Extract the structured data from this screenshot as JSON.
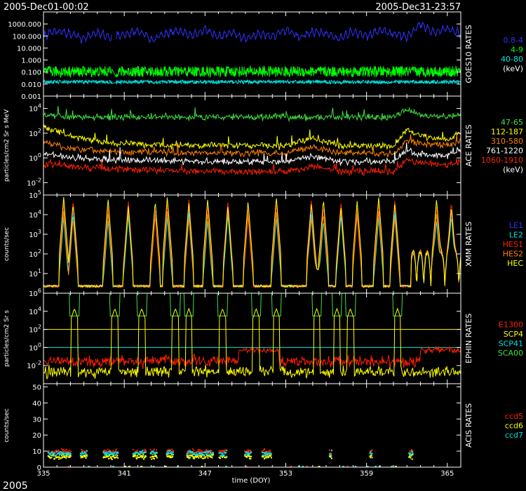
{
  "header": {
    "start_time": "2005-Dec01-00:02",
    "end_time": "2005-Dec31-23:57"
  },
  "footer": {
    "year": "2005"
  },
  "x_axis": {
    "label": "time (DOY)",
    "ticks": [
      "335",
      "341",
      "347",
      "353",
      "359",
      "365"
    ],
    "range": [
      335,
      366
    ]
  },
  "colors": {
    "blue": "#3030ff",
    "green": "#00ff00",
    "cyan": "#00e0e0",
    "yellow": "#ffff00",
    "orange": "#ff8000",
    "red": "#ff2000",
    "white": "#ffffff",
    "lightgreen": "#40e040"
  },
  "chart_data": [
    {
      "id": "goes",
      "type": "line",
      "title": "GOES10 RATES",
      "ylabel": "",
      "y_scale": "log",
      "ylim": [
        0.001,
        10000
      ],
      "y_ticks": [
        "1000.000",
        "100.000",
        "10.000",
        "1.000",
        "0.100",
        "0.010",
        "0.001"
      ],
      "legend": [
        {
          "label": "0.8-4",
          "color": "#3030ff"
        },
        {
          "label": "4-9",
          "color": "#00ff00"
        },
        {
          "label": "40-80",
          "color": "#00e0e0"
        },
        {
          "label": "(keV)",
          "color": "#ffffff"
        }
      ],
      "series": [
        {
          "name": "0.8-4",
          "color": "#3030ff",
          "x": [
            335,
            336,
            337,
            338,
            339,
            340,
            341,
            342,
            343,
            344,
            345,
            346,
            347,
            348,
            349,
            350,
            351,
            352,
            353,
            354,
            355,
            356,
            357,
            358,
            359,
            360,
            361,
            362,
            363,
            364,
            365,
            366
          ],
          "y": [
            100,
            300,
            150,
            60,
            200,
            80,
            120,
            300,
            50,
            150,
            250,
            100,
            400,
            80,
            200,
            60,
            150,
            100,
            300,
            80,
            200,
            150,
            60,
            250,
            100,
            300,
            150,
            80,
            1000,
            200,
            400,
            150
          ]
        },
        {
          "name": "4-9",
          "color": "#00ff00",
          "x": [
            335,
            340,
            345,
            350,
            355,
            360,
            366
          ],
          "y": [
            0.1,
            0.1,
            0.1,
            0.1,
            0.1,
            0.1,
            0.1
          ]
        },
        {
          "name": "40-80",
          "color": "#00e0e0",
          "x": [
            335,
            340,
            345,
            350,
            355,
            360,
            366
          ],
          "y": [
            0.015,
            0.015,
            0.015,
            0.015,
            0.015,
            0.015,
            0.015
          ]
        }
      ]
    },
    {
      "id": "ace",
      "type": "line",
      "title": "ACE RATES",
      "ylabel": "particles/cm2 Sr s MeV",
      "y_scale": "log",
      "ylim": [
        0.001,
        100000
      ],
      "y_ticks": [
        "10^4",
        "10^2",
        "10^0",
        "10^-2"
      ],
      "legend": [
        {
          "label": "47-65",
          "color": "#40e040"
        },
        {
          "label": "112-187",
          "color": "#ffff00"
        },
        {
          "label": "310-580",
          "color": "#ff8000"
        },
        {
          "label": "761-1220",
          "color": "#ffffff"
        },
        {
          "label": "1060-1910",
          "color": "#ff2000"
        },
        {
          "label": "(keV)",
          "color": "#ffffff"
        }
      ],
      "series": [
        {
          "name": "47-65",
          "color": "#40e040",
          "x": [
            335,
            337,
            339,
            341,
            343,
            345,
            347,
            349,
            351,
            353,
            355,
            357,
            359,
            361,
            362,
            363,
            365,
            366
          ],
          "y": [
            3000,
            2000,
            2000,
            2000,
            2000,
            2000,
            2000,
            2000,
            2000,
            2000,
            2000,
            2000,
            2000,
            2000,
            8000,
            3000,
            2000,
            3000
          ]
        },
        {
          "name": "112-187",
          "color": "#ffff00",
          "x": [
            335,
            337,
            339,
            341,
            343,
            345,
            347,
            349,
            351,
            353,
            355,
            357,
            359,
            361,
            362,
            363,
            365,
            366
          ],
          "y": [
            300,
            60,
            20,
            15,
            12,
            10,
            10,
            10,
            10,
            10,
            40,
            10,
            10,
            8,
            200,
            60,
            30,
            100
          ]
        },
        {
          "name": "310-580",
          "color": "#ff8000",
          "x": [
            335,
            337,
            339,
            341,
            343,
            345,
            347,
            349,
            351,
            353,
            355,
            357,
            359,
            361,
            362,
            363,
            365,
            366
          ],
          "y": [
            20,
            5,
            4,
            3,
            3,
            2.5,
            2.5,
            2.5,
            2.5,
            2.5,
            8,
            2.5,
            2.5,
            2,
            30,
            15,
            10,
            20
          ]
        },
        {
          "name": "761-1220",
          "color": "#ffffff",
          "x": [
            335,
            337,
            339,
            341,
            343,
            345,
            347,
            349,
            351,
            353,
            355,
            357,
            359,
            361,
            362,
            363,
            365,
            366
          ],
          "y": [
            2,
            1,
            0.8,
            0.7,
            0.6,
            0.6,
            0.5,
            0.5,
            0.5,
            0.5,
            1.5,
            0.5,
            0.5,
            0.5,
            4,
            2,
            1.5,
            3
          ]
        },
        {
          "name": "1060-1910",
          "color": "#ff2000",
          "x": [
            335,
            337,
            339,
            341,
            343,
            345,
            347,
            349,
            351,
            353,
            355,
            357,
            359,
            361,
            362,
            363,
            365,
            366
          ],
          "y": [
            0.3,
            0.2,
            0.15,
            0.12,
            0.1,
            0.1,
            0.08,
            0.08,
            0.08,
            0.08,
            0.2,
            0.08,
            0.08,
            0.08,
            0.8,
            0.4,
            0.3,
            0.5
          ]
        }
      ]
    },
    {
      "id": "xmm",
      "type": "line",
      "title": "XMM RATES",
      "ylabel": "counts/sec",
      "y_scale": "log",
      "ylim": [
        1,
        100000
      ],
      "y_ticks": [
        "10^5",
        "10^4",
        "10^3",
        "10^2",
        "10^1"
      ],
      "legend": [
        {
          "label": "LE1",
          "color": "#3030ff"
        },
        {
          "label": "LE2",
          "color": "#00e0e0"
        },
        {
          "label": "HES1",
          "color": "#ff2000"
        },
        {
          "label": "HES2",
          "color": "#ff8000"
        },
        {
          "label": "HEC",
          "color": "#ffff00"
        }
      ],
      "peaks": [
        336.5,
        337.2,
        339.8,
        341.3,
        343.3,
        344.2,
        345.8,
        347.2,
        348.7,
        350.2,
        352.3,
        354.9,
        355.8,
        357.1,
        358.3,
        359.9,
        361.1,
        364.2,
        365.3
      ],
      "base": 2
    },
    {
      "id": "ephin",
      "type": "line",
      "title": "EPHIN RATES",
      "ylabel": "particles/cm2 Sr s",
      "y_scale": "log",
      "ylim": [
        0.0001,
        1000000
      ],
      "y_ticks": [
        "10^6",
        "10^4",
        "10^2",
        "10^0",
        "10^-2"
      ],
      "legend": [
        {
          "label": "E1300",
          "color": "#ff2000"
        },
        {
          "label": "SCP4",
          "color": "#ffff00"
        },
        {
          "label": "SCP41",
          "color": "#00e0e0"
        },
        {
          "label": "SCA00",
          "color": "#40e040"
        }
      ],
      "thresholds": [
        {
          "value": 100,
          "color": "#ffff00"
        },
        {
          "value": 1,
          "color": "#00e0e0"
        }
      ],
      "peaks": [
        337.3,
        340.3,
        342.3,
        344.8,
        345.8,
        348.3,
        350.8,
        352.3,
        355.3,
        356.8,
        357.8,
        361.3
      ]
    },
    {
      "id": "acis",
      "type": "scatter",
      "title": "ACIS RATES",
      "ylabel": "counts/sec",
      "y_scale": "linear",
      "ylim": [
        0,
        52
      ],
      "y_ticks": [
        "50",
        "40",
        "30",
        "20",
        "10",
        "0"
      ],
      "legend": [
        {
          "label": "ccd5",
          "color": "#ff2000"
        },
        {
          "label": "ccd6",
          "color": "#ffff00"
        },
        {
          "label": "ccd7",
          "color": "#00e0e0"
        }
      ],
      "segments": [
        [
          335.3,
          337.0
        ],
        [
          337.7,
          338.2
        ],
        [
          339.4,
          340.5
        ],
        [
          341.6,
          342.6
        ],
        [
          342.9,
          343.4
        ],
        [
          344.1,
          344.6
        ],
        [
          345.6,
          347.6
        ],
        [
          348.0,
          348.6
        ],
        [
          349.9,
          350.4
        ],
        [
          351.2,
          351.9
        ],
        [
          356.2,
          356.4
        ],
        [
          359.2,
          359.4
        ],
        [
          362.1,
          362.4
        ]
      ]
    }
  ]
}
